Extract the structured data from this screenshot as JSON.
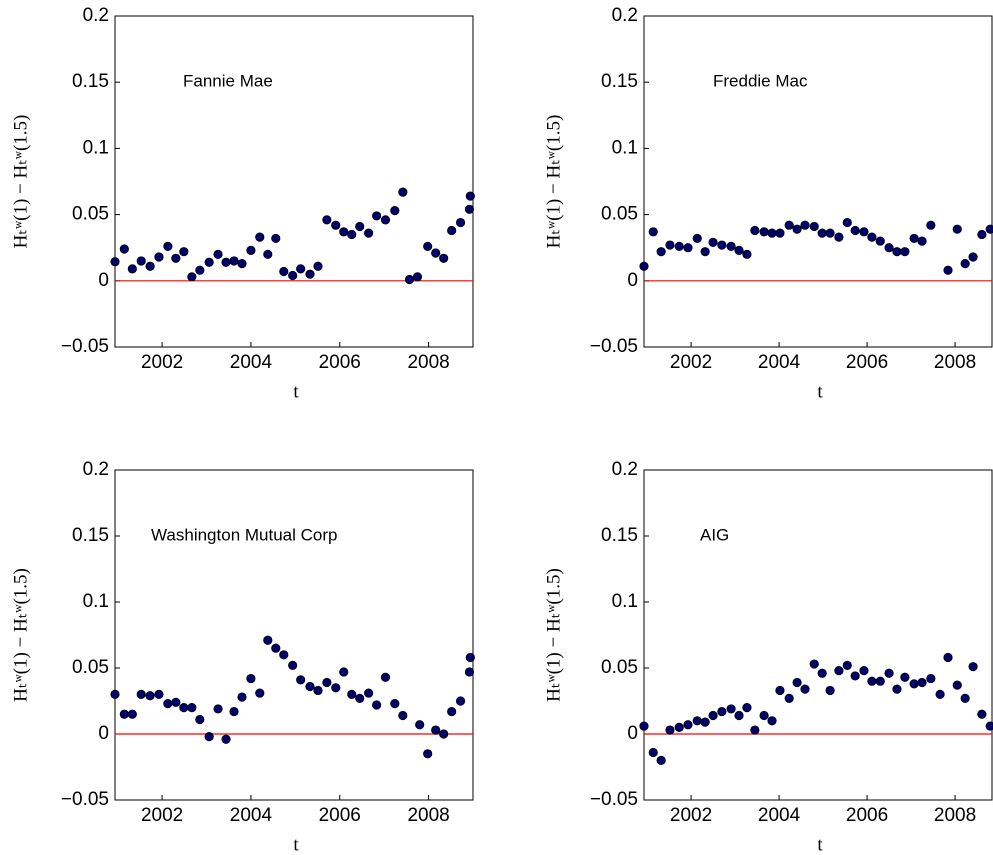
{
  "chart_data": [
    {
      "type": "scatter",
      "title": "Fannie Mae",
      "x_label": "t",
      "y_label": "Hₜʷ(1) − Hₜʷ(1.5)",
      "xlim": [
        2000.94,
        2009.0
      ],
      "xticks": [
        2002,
        2004,
        2006,
        2008
      ],
      "ylim": [
        -0.05,
        0.2
      ],
      "yticks": [
        {
          "value": -0.05,
          "label": "−0.05"
        },
        0,
        0.05,
        0.1,
        0.15,
        0.2
      ],
      "hline": {
        "value": 0,
        "color": "#ff0000"
      },
      "series": [
        {
          "color": "#00006b",
          "x": [
            2000.94,
            2001.15,
            2001.33,
            2001.53,
            2001.73,
            2001.93,
            2002.13,
            2002.31,
            2002.49,
            2002.67,
            2002.85,
            2003.06,
            2003.26,
            2003.44,
            2003.62,
            2003.8,
            2004.0,
            2004.2,
            2004.38,
            2004.56,
            2004.74,
            2004.94,
            2005.12,
            2005.33,
            2005.51,
            2005.71,
            2005.91,
            2006.09,
            2006.27,
            2006.45,
            2006.65,
            2006.83,
            2007.03,
            2007.24,
            2007.42,
            2007.57,
            2007.75,
            2007.98,
            2008.16,
            2008.34,
            2008.52,
            2008.72,
            2008.92,
            2008.94
          ],
          "values": [
            0.0144,
            0.024,
            0.009,
            0.015,
            0.011,
            0.018,
            0.026,
            0.017,
            0.022,
            0.003,
            0.008,
            0.014,
            0.02,
            0.014,
            0.015,
            0.013,
            0.023,
            0.033,
            0.02,
            0.032,
            0.007,
            0.004,
            0.009,
            0.005,
            0.011,
            0.046,
            0.042,
            0.037,
            0.035,
            0.041,
            0.036,
            0.049,
            0.046,
            0.053,
            0.067,
            0.001,
            0.003,
            0.026,
            0.021,
            0.017,
            0.038,
            0.044,
            0.054,
            0.064
          ]
        }
      ]
    },
    {
      "type": "scatter",
      "title": "Freddie Mac",
      "x_label": "t",
      "y_label": "Hₜʷ(1) − Hₜʷ(1.5)",
      "xlim": [
        2000.93,
        2008.84
      ],
      "xticks": [
        2002,
        2004,
        2006,
        2008
      ],
      "ylim": [
        -0.05,
        0.2
      ],
      "yticks": [
        {
          "value": -0.05,
          "label": "−0.05"
        },
        0,
        0.05,
        0.1,
        0.15,
        0.2
      ],
      "hline": {
        "value": 0,
        "color": "#ff0000"
      },
      "series": [
        {
          "color": "#00006b",
          "x": [
            2000.93,
            2001.14,
            2001.32,
            2001.52,
            2001.73,
            2001.93,
            2002.14,
            2002.32,
            2002.5,
            2002.7,
            2002.91,
            2003.09,
            2003.27,
            2003.45,
            2003.66,
            2003.84,
            2004.02,
            2004.23,
            2004.41,
            2004.59,
            2004.8,
            2004.98,
            2005.16,
            2005.36,
            2005.55,
            2005.73,
            2005.93,
            2006.11,
            2006.3,
            2006.5,
            2006.68,
            2006.86,
            2007.07,
            2007.25,
            2007.45,
            2007.84,
            2008.05,
            2008.23,
            2008.41,
            2008.61,
            2008.8
          ],
          "values": [
            0.011,
            0.037,
            0.022,
            0.027,
            0.026,
            0.025,
            0.032,
            0.022,
            0.029,
            0.027,
            0.026,
            0.023,
            0.02,
            0.038,
            0.037,
            0.036,
            0.036,
            0.042,
            0.039,
            0.042,
            0.041,
            0.036,
            0.036,
            0.033,
            0.044,
            0.038,
            0.037,
            0.033,
            0.03,
            0.025,
            0.022,
            0.022,
            0.032,
            0.03,
            0.042,
            0.008,
            0.039,
            0.013,
            0.018,
            0.035,
            0.039
          ]
        }
      ]
    },
    {
      "type": "scatter",
      "title": "Washington Mutual Corp",
      "x_label": "t",
      "y_label": "Hₜʷ(1) − Hₜʷ(1.5)",
      "xlim": [
        2000.94,
        2009.0
      ],
      "xticks": [
        2002,
        2004,
        2006,
        2008
      ],
      "ylim": [
        -0.05,
        0.2
      ],
      "yticks": [
        {
          "value": -0.05,
          "label": "−0.05"
        },
        0,
        0.05,
        0.1,
        0.15,
        0.2
      ],
      "hline": {
        "value": 0,
        "color": "#ff0000"
      },
      "series": [
        {
          "color": "#00006b",
          "x": [
            2000.94,
            2001.15,
            2001.33,
            2001.53,
            2001.73,
            2001.93,
            2002.13,
            2002.31,
            2002.49,
            2002.67,
            2002.85,
            2003.06,
            2003.26,
            2003.44,
            2003.62,
            2003.8,
            2004.0,
            2004.2,
            2004.38,
            2004.56,
            2004.74,
            2004.94,
            2005.12,
            2005.33,
            2005.51,
            2005.71,
            2005.91,
            2006.09,
            2006.27,
            2006.45,
            2006.65,
            2006.83,
            2007.03,
            2007.24,
            2007.42,
            2007.8,
            2007.98,
            2008.16,
            2008.34,
            2008.52,
            2008.72,
            2008.92,
            2008.94
          ],
          "values": [
            0.03,
            0.015,
            0.015,
            0.03,
            0.029,
            0.03,
            0.023,
            0.024,
            0.02,
            0.02,
            0.011,
            -0.002,
            0.019,
            -0.004,
            0.017,
            0.028,
            0.042,
            0.031,
            0.071,
            0.065,
            0.06,
            0.052,
            0.041,
            0.036,
            0.033,
            0.039,
            0.035,
            0.047,
            0.03,
            0.027,
            0.031,
            0.022,
            0.043,
            0.023,
            0.014,
            0.007,
            -0.015,
            0.003,
            0.0,
            0.017,
            0.025,
            0.047,
            0.058
          ]
        }
      ]
    },
    {
      "type": "scatter",
      "title": "AIG",
      "x_label": "t",
      "y_label": "Hₜʷ(1) − Hₜʷ(1.5)",
      "xlim": [
        2000.93,
        2008.84
      ],
      "xticks": [
        2002,
        2004,
        2006,
        2008
      ],
      "ylim": [
        -0.05,
        0.2
      ],
      "yticks": [
        {
          "value": -0.05,
          "label": "−0.05"
        },
        0,
        0.05,
        0.1,
        0.15,
        0.2
      ],
      "hline": {
        "value": 0,
        "color": "#ff0000"
      },
      "series": [
        {
          "color": "#00006b",
          "x": [
            2000.93,
            2001.14,
            2001.32,
            2001.52,
            2001.73,
            2001.93,
            2002.14,
            2002.32,
            2002.5,
            2002.7,
            2002.91,
            2003.09,
            2003.27,
            2003.45,
            2003.66,
            2003.84,
            2004.02,
            2004.23,
            2004.41,
            2004.59,
            2004.8,
            2004.98,
            2005.16,
            2005.36,
            2005.55,
            2005.73,
            2005.93,
            2006.11,
            2006.3,
            2006.5,
            2006.68,
            2006.86,
            2007.07,
            2007.25,
            2007.45,
            2007.66,
            2007.84,
            2008.05,
            2008.23,
            2008.41,
            2008.61,
            2008.8
          ],
          "values": [
            0.006,
            -0.014,
            -0.02,
            0.003,
            0.005,
            0.007,
            0.01,
            0.009,
            0.014,
            0.017,
            0.019,
            0.014,
            0.02,
            0.003,
            0.014,
            0.01,
            0.033,
            0.027,
            0.039,
            0.034,
            0.053,
            0.046,
            0.033,
            0.048,
            0.052,
            0.044,
            0.048,
            0.04,
            0.04,
            0.046,
            0.034,
            0.043,
            0.038,
            0.039,
            0.042,
            0.03,
            0.058,
            0.037,
            0.027,
            0.051,
            0.015,
            0.006
          ]
        }
      ]
    }
  ]
}
